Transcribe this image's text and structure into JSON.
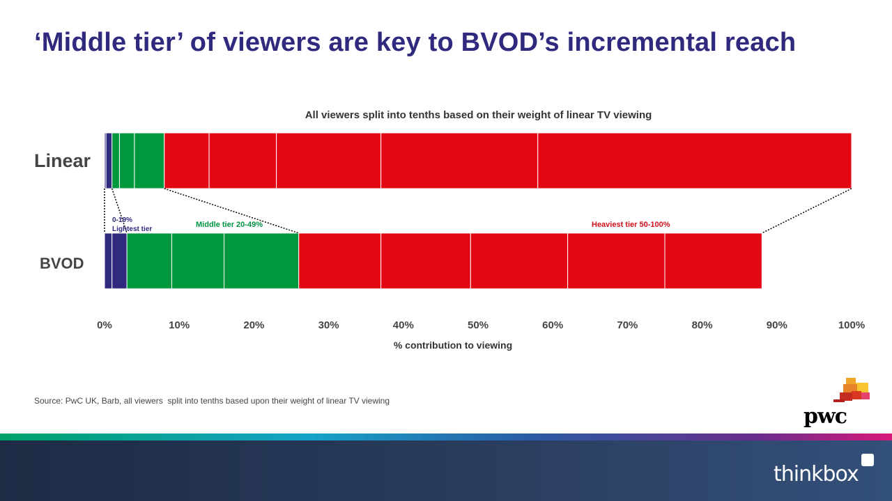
{
  "slide": {
    "title": "‘Middle tier’ of viewers are key to BVOD’s incremental reach",
    "source": "Source: PwC UK, Barb, all viewers  split into tenths based upon their weight of linear TV viewing",
    "pwc_logo_text": "pwc",
    "thinkbox_logo_text": "thinkbox"
  },
  "colors": {
    "title": "#2f2a7e",
    "light_tier": "#2f2a7e",
    "middle_tier": "#00983f",
    "heavy_tier": "#e30613"
  },
  "chart_data": {
    "type": "bar",
    "orientation": "horizontal",
    "stacked": true,
    "title": "All viewers split into tenths based on their weight of linear TV viewing",
    "xlabel": "% contribution to viewing",
    "ylabel": "",
    "xlim": [
      0,
      100
    ],
    "x_ticks": [
      "0%",
      "10%",
      "20%",
      "30%",
      "40%",
      "50%",
      "60%",
      "70%",
      "80%",
      "90%",
      "100%"
    ],
    "categories": [
      "Linear",
      "BVOD"
    ],
    "segment_tiers": [
      "light",
      "light",
      "middle",
      "middle",
      "middle",
      "heavy",
      "heavy",
      "heavy",
      "heavy",
      "heavy"
    ],
    "segments": {
      "Linear": [
        0.2,
        0.8,
        1,
        2,
        4,
        6,
        9,
        14,
        21,
        42
      ],
      "BVOD": [
        1,
        2,
        6,
        7,
        10,
        11,
        12,
        13,
        13,
        13
      ]
    },
    "tier_labels": {
      "light_line1": "0-19%",
      "light_line2": "Lightest tier",
      "middle": "Middle tier 20-49%",
      "heavy": "Heaviest tier 50-100%"
    },
    "grid": false,
    "legend": "none"
  }
}
